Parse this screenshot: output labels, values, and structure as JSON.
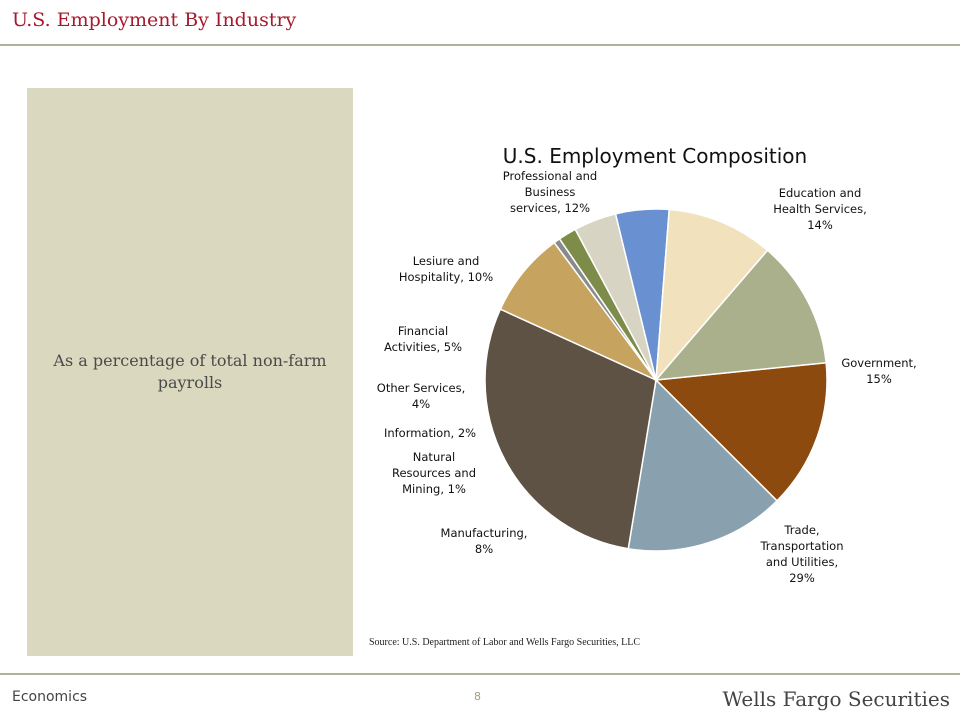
{
  "header": {
    "title": "U.S. Employment By Industry"
  },
  "side_panel": {
    "text": "As a percentage of total non-farm payrolls"
  },
  "source": "Source:  U.S. Department of Labor and Wells Fargo Securities, LLC",
  "footer": {
    "left": "Economics",
    "page": "8",
    "brand": "Wells Fargo Securities"
  },
  "chart_data": {
    "type": "pie",
    "title": "U.S. Employment Composition",
    "slices": [
      {
        "label": [
          "Education and",
          "Health Services,",
          "14%"
        ],
        "name": "Education and Health Services",
        "value": 14,
        "color": "#8c4a0e"
      },
      {
        "label": [
          "Government,",
          "15%"
        ],
        "name": "Government",
        "value": 15,
        "color": "#89a0ae"
      },
      {
        "label": [
          "Trade,",
          "Transportation",
          "and Utilities,",
          "29%"
        ],
        "name": "Trade, Transportation and Utilities",
        "value": 29,
        "color": "#5e5245"
      },
      {
        "label": [
          "Manufacturing,",
          "8%"
        ],
        "name": "Manufacturing",
        "value": 8,
        "color": "#c6a35e"
      },
      {
        "label": [
          "Natural",
          "Resources and",
          "Mining, 1%"
        ],
        "name": "Natural Resources and Mining",
        "value": 0.6,
        "color": "#888a8c"
      },
      {
        "label": [
          "Information, 2%"
        ],
        "name": "Information",
        "value": 1.7,
        "color": "#7d8c48"
      },
      {
        "label": [
          "Other Services,",
          "4%"
        ],
        "name": "Other Services",
        "value": 4,
        "color": "#d8d4c4"
      },
      {
        "label": [
          "Financial",
          "Activities, 5%"
        ],
        "name": "Financial Activities",
        "value": 5,
        "color": "#6990d0"
      },
      {
        "label": [
          "Lesiure and",
          "Hospitality, 10%"
        ],
        "name": "Lesiure and Hospitality",
        "value": 10,
        "color": "#f2e1bd"
      },
      {
        "label": [
          "Professional and",
          "Business",
          "services, 12%"
        ],
        "name": "Professional and Business services",
        "value": 12,
        "color": "#aab08c"
      }
    ]
  }
}
